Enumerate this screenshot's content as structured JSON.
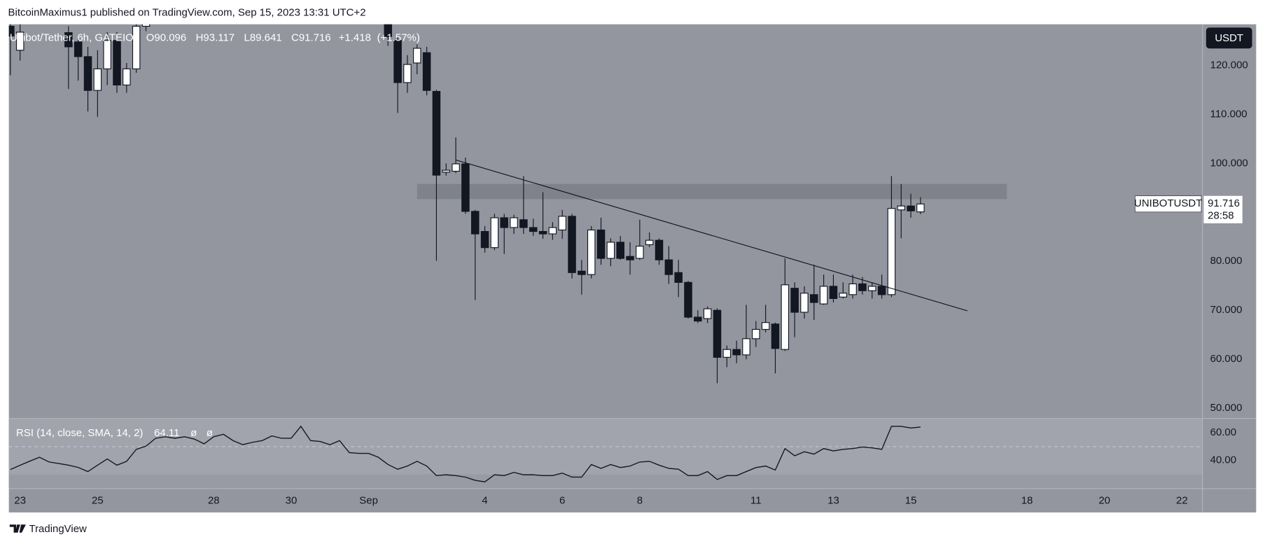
{
  "header": {
    "text": "BitcoinMaximus1 published on TradingView.com, Sep 15, 2023 13:31 UTC+2"
  },
  "footer": {
    "brand": "TradingView"
  },
  "chart_data": [
    {
      "type": "candlestick",
      "title": "Unibot/Tether, 6h, GATEIO",
      "legend_labels": [
        "O",
        "H",
        "L",
        "C"
      ],
      "legend_values": [
        90.096,
        93.117,
        89.641,
        91.716
      ],
      "change": {
        "value": 1.418,
        "label": "+1.418"
      },
      "change_percent": {
        "value": 1.57,
        "label": "(+1.57%)"
      },
      "symbol": "UNIBOTUSDT",
      "last_price": 91.716,
      "countdown": "28:58",
      "currency": "USDT",
      "x": [
        -8.25,
        -8,
        -6.75,
        -6.5,
        -6.25,
        -6,
        -5.75,
        -5.5,
        -5.25,
        -5,
        -4.75,
        1.5,
        1.75,
        2,
        2.25,
        2.5,
        2.75,
        3,
        3.25,
        3.5,
        3.75,
        4,
        4.25,
        4.5,
        4.75,
        5,
        5.25,
        5.5,
        5.75,
        6,
        6.25,
        6.5,
        6.75,
        7,
        7.25,
        7.5,
        7.75,
        8,
        8.25,
        8.5,
        8.75,
        9,
        9.25,
        9.5,
        9.75,
        10,
        10.25,
        10.5,
        10.75,
        11,
        11.25,
        11.5,
        11.75,
        12,
        12.25,
        12.5,
        12.75,
        13,
        13.25,
        13.5,
        13.75,
        14,
        14.25,
        14.5,
        14.75,
        15,
        15.25
      ],
      "open": [
        128,
        123.1,
        126.7,
        124.8,
        121.8,
        114.9,
        119.3,
        125.1,
        116,
        119.3,
        128,
        130,
        125.1,
        116.5,
        120.5,
        122.6,
        114.7,
        98.2,
        98.4,
        99.9,
        90.2,
        86.1,
        82.8,
        88.9,
        86.9,
        88.5,
        86.9,
        86.1,
        85.6,
        86.4,
        89.2,
        78,
        77.3,
        86.4,
        80.6,
        83.9,
        81,
        80.6,
        83.4,
        84.3,
        80.3,
        77.7,
        75.7,
        68.6,
        68.3,
        70,
        60.4,
        62,
        60.9,
        64.2,
        66.1,
        67.2,
        62,
        74.5,
        69.6,
        73.2,
        71.3,
        74.9,
        72.7,
        73.2,
        75.4,
        74,
        74.9,
        73.2,
        90.5,
        91.3,
        90.096
      ],
      "high": [
        130,
        129,
        128,
        126,
        123.8,
        123.1,
        126.8,
        126.8,
        120.5,
        129,
        135,
        132,
        125.9,
        122.1,
        124.3,
        123.8,
        115,
        100,
        105.3,
        101.2,
        90.5,
        87.2,
        89.7,
        89.7,
        89.5,
        97.4,
        88.7,
        94.1,
        88,
        90.5,
        89.7,
        80.3,
        87.2,
        88.9,
        84.7,
        85.2,
        83.9,
        88.5,
        85.9,
        84.7,
        83.1,
        80.3,
        76,
        70,
        70.8,
        70.4,
        62.8,
        63.8,
        71.1,
        67.8,
        71.1,
        67.5,
        80.6,
        75.7,
        74.9,
        79.3,
        77.3,
        77.3,
        75.7,
        77.3,
        76.8,
        75.7,
        77.3,
        97.4,
        95.8,
        93.8,
        93.117
      ],
      "low": [
        118,
        121,
        115.2,
        116.9,
        110.6,
        109.5,
        116,
        114.4,
        114.4,
        118.5,
        127,
        124,
        110.3,
        114.4,
        118.2,
        113.9,
        80.1,
        97.5,
        98,
        89.7,
        72.1,
        81.8,
        82.3,
        81.5,
        85.6,
        85.6,
        85.2,
        84.6,
        84.4,
        84.6,
        76.5,
        73.2,
        76.5,
        79.3,
        79,
        80.3,
        77.3,
        80.3,
        82.9,
        79.3,
        75.4,
        72.7,
        68.3,
        67.4,
        67.4,
        55.1,
        58.4,
        59.2,
        60,
        62.5,
        65.5,
        57.1,
        61.7,
        64.5,
        68.3,
        68,
        71.1,
        71.6,
        72.4,
        72.4,
        73.2,
        72.4,
        72.4,
        72.7,
        84.7,
        88.9,
        89.641
      ],
      "close": [
        126,
        126.8,
        123.8,
        121.8,
        114.9,
        119.3,
        125.1,
        116,
        119.3,
        128,
        133,
        125.9,
        116.5,
        120.2,
        123.5,
        114.9,
        97.6,
        98.6,
        99.9,
        90.2,
        85.6,
        82.8,
        88.9,
        86.9,
        88.9,
        86.9,
        86.1,
        85.6,
        86.9,
        89.2,
        77.7,
        77.3,
        86.4,
        80.6,
        83.9,
        80.6,
        80.3,
        83.1,
        84.3,
        80.3,
        77.3,
        75.7,
        68.6,
        67.8,
        70.3,
        60.4,
        62,
        60.9,
        64.2,
        66.1,
        67.5,
        62.2,
        75.2,
        69.6,
        73.5,
        71.6,
        74.9,
        72.4,
        73.5,
        75.4,
        74,
        74.9,
        73.2,
        90.8,
        91.3,
        90.298,
        91.716
      ],
      "up_color": "#ffffff",
      "down_color": "#131722",
      "xlim": [
        -8.29,
        22.52
      ],
      "xticks": [
        {
          "value": -8,
          "label": "23"
        },
        {
          "value": -6,
          "label": "25"
        },
        {
          "value": -3,
          "label": "28"
        },
        {
          "value": -1,
          "label": "30"
        },
        {
          "value": 1,
          "label": "Sep"
        },
        4,
        6,
        8,
        11,
        13,
        15,
        18,
        20,
        22
      ],
      "ylim": [
        48,
        128.4
      ],
      "yticks": [
        {
          "value": 50,
          "label": "50.000"
        },
        {
          "value": 60,
          "label": "60.000"
        },
        {
          "value": 70,
          "label": "70.000"
        },
        {
          "value": 80,
          "label": "80.000"
        },
        {
          "value": 90,
          "label": "90.000"
        },
        {
          "value": 100,
          "label": "100.000"
        },
        {
          "value": 110,
          "label": "110.000"
        },
        {
          "value": 120,
          "label": "120.000"
        }
      ],
      "zones": [
        {
          "x": [
            2.25,
            17.48
          ],
          "y": [
            92.7,
            95.8
          ],
          "color": "#7f828b"
        }
      ],
      "trendlines": [
        {
          "x": [
            3.25,
            16.46
          ],
          "y": [
            100.7,
            69.9
          ],
          "color": "#131722"
        }
      ]
    },
    {
      "type": "line",
      "title": "RSI (14, close, SMA, 14, 2)",
      "last_value": 64.11,
      "extra_labels": [
        "ø",
        "ø"
      ],
      "x": [
        -8.25,
        -8,
        -7.75,
        -7.5,
        -7.25,
        -7,
        -6.75,
        -6.5,
        -6.25,
        -6,
        -5.75,
        -5.5,
        -5.25,
        -5,
        -4.75,
        -4.5,
        -4.25,
        -4,
        -3.75,
        -3.5,
        -3.25,
        -3,
        -2.75,
        -2.5,
        -2.25,
        -2,
        -1.75,
        -1.5,
        -1.25,
        -1,
        -0.75,
        -0.5,
        -0.25,
        0,
        0.25,
        0.5,
        0.75,
        1,
        1.25,
        1.5,
        1.75,
        2,
        2.25,
        2.5,
        2.75,
        3,
        3.25,
        3.5,
        3.75,
        4,
        4.25,
        4.5,
        4.75,
        5,
        5.25,
        5.5,
        5.75,
        6,
        6.25,
        6.5,
        6.75,
        7,
        7.25,
        7.5,
        7.75,
        8,
        8.25,
        8.5,
        8.75,
        9,
        9.25,
        9.5,
        9.75,
        10,
        10.25,
        10.5,
        10.75,
        11,
        11.25,
        11.5,
        11.75,
        12,
        12.25,
        12.5,
        12.75,
        13,
        13.25,
        13.5,
        13.75,
        14,
        14.25,
        14.5,
        14.75,
        15,
        15.25
      ],
      "values": [
        33.5,
        36.6,
        39.5,
        42.3,
        38.9,
        37.8,
        36.6,
        35,
        32,
        36.6,
        41.1,
        36.6,
        39.4,
        48,
        50.3,
        56,
        57.1,
        56,
        57.1,
        55.4,
        52,
        57.1,
        58.9,
        54.3,
        51.4,
        53.1,
        54.3,
        57.7,
        56,
        56,
        64.6,
        54.3,
        53.7,
        51.4,
        54.3,
        45.7,
        45.1,
        45.1,
        42.3,
        37.1,
        33.7,
        36,
        39.4,
        36,
        29.1,
        29.7,
        29.1,
        28,
        25.7,
        24.6,
        29.7,
        29.1,
        31.4,
        29.7,
        29.7,
        29.1,
        29.1,
        30.9,
        28,
        28,
        37.1,
        34.3,
        37.1,
        34.9,
        36,
        38.9,
        39.4,
        36.6,
        34.3,
        33.7,
        29.1,
        29.1,
        32,
        26.3,
        29.1,
        29.1,
        32,
        34.9,
        36,
        33.1,
        48.6,
        43.4,
        46.3,
        44.6,
        48.6,
        46.9,
        48,
        48.6,
        49.7,
        49.1,
        48,
        64.6,
        64.6,
        63.4,
        64.11
      ],
      "color": "#131722",
      "ylim": [
        20,
        70
      ],
      "yticks": [
        {
          "value": 60,
          "label": "60.00"
        },
        {
          "value": 40,
          "label": "40.00"
        }
      ],
      "band": [
        30,
        70
      ],
      "midline": 50
    }
  ]
}
